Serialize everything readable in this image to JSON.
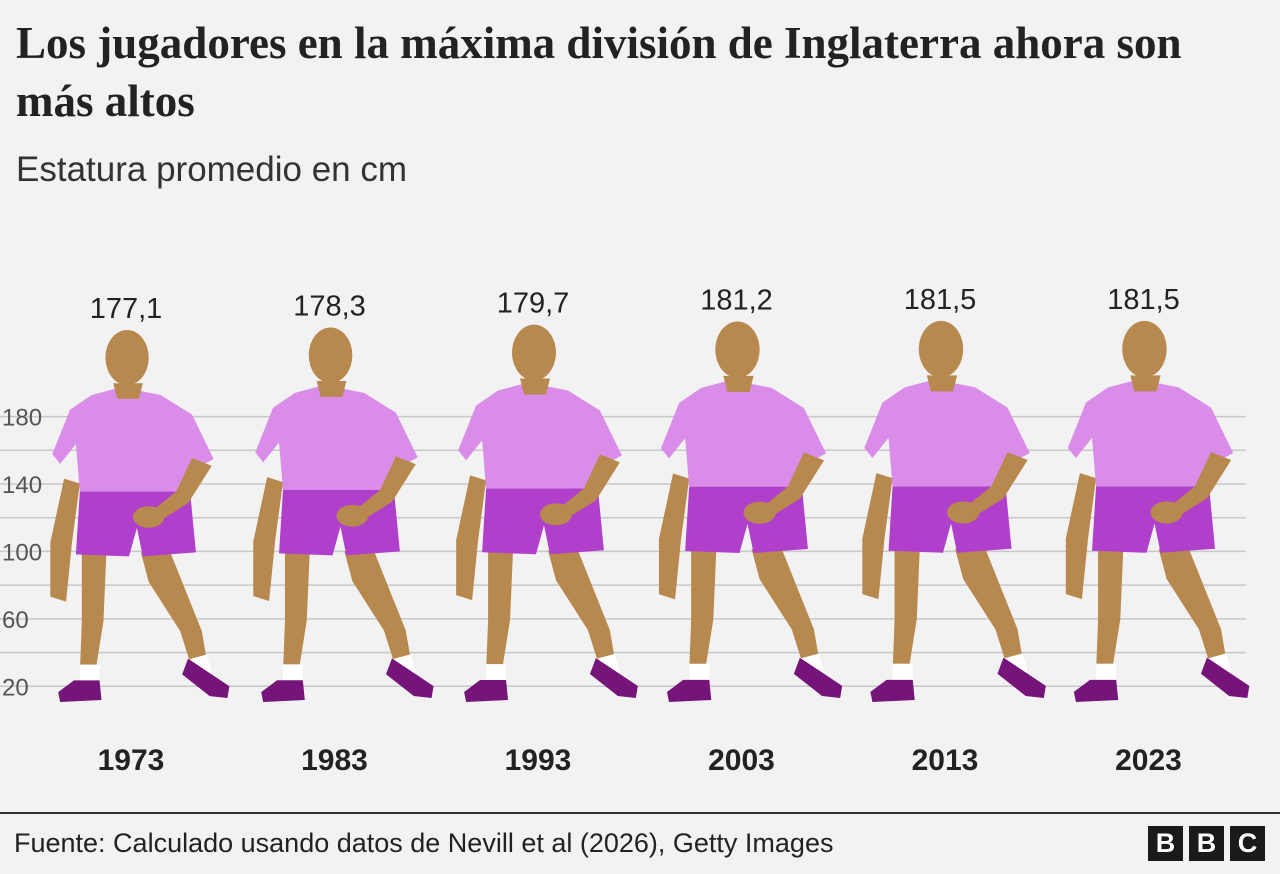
{
  "title": "Los jugadores en la máxima división de Inglaterra ahora son más altos",
  "subtitle": "Estatura promedio en cm",
  "source": "Fuente: Calculado usando datos de Nevill et al (2026), Getty Images",
  "logo_letters": [
    "B",
    "B",
    "C"
  ],
  "colors": {
    "background": "#f2f2f2",
    "skin": "#b8894f",
    "shirt": "#d98ce8",
    "shorts": "#b040cc",
    "boots": "#75157a",
    "socks": "#ffffff",
    "grid": "#c8c8c8"
  },
  "chart_data": {
    "type": "bar",
    "title": "Los jugadores en la máxima división de Inglaterra ahora son más altos",
    "subtitle": "Estatura promedio en cm",
    "categories": [
      "1973",
      "1983",
      "1993",
      "2003",
      "2013",
      "2023"
    ],
    "values": [
      177.1,
      178.3,
      179.7,
      181.2,
      181.5,
      181.5
    ],
    "value_labels": [
      "177,1",
      "178,3",
      "179,7",
      "181,2",
      "181,5",
      "181,5"
    ],
    "y_ticks": [
      "20",
      "60",
      "100",
      "140",
      "180"
    ],
    "y_tick_values": [
      20,
      60,
      100,
      140,
      180
    ],
    "ylim": [
      0,
      190
    ],
    "grid": true,
    "legend": "none",
    "mark": "player figure scaled to height"
  }
}
